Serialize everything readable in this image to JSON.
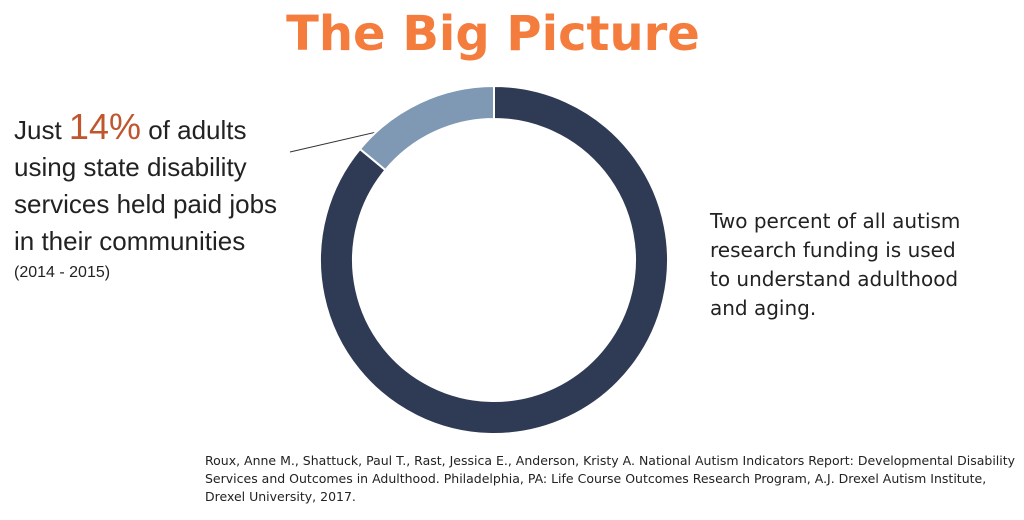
{
  "chart_data": {
    "type": "donut",
    "title": "The Big Picture",
    "values": [
      14,
      86
    ],
    "value_labels": [
      "14%",
      null
    ],
    "colors": [
      "#7f98b3",
      "#2f3b55"
    ],
    "annotation": {
      "lead": "Just",
      "lines": [
        "of adults",
        "using state disability",
        "services held paid jobs",
        "in their communities"
      ],
      "period": "(2014 - 2015)"
    },
    "note": [
      "Two percent of all autism",
      "research funding is used",
      "to understand adulthood",
      "and aging."
    ],
    "source": [
      "Roux, Anne M., Shattuck, Paul T., Rast, Jessica E., Anderson, Kristy A. National Autism Indicators Report: Developmental Disability",
      "Services and Outcomes in Adulthood. Philadelphia, PA: Life Course Outcomes Research Program, A.J. Drexel Autism Institute,",
      "Drexel University, 2017."
    ]
  }
}
